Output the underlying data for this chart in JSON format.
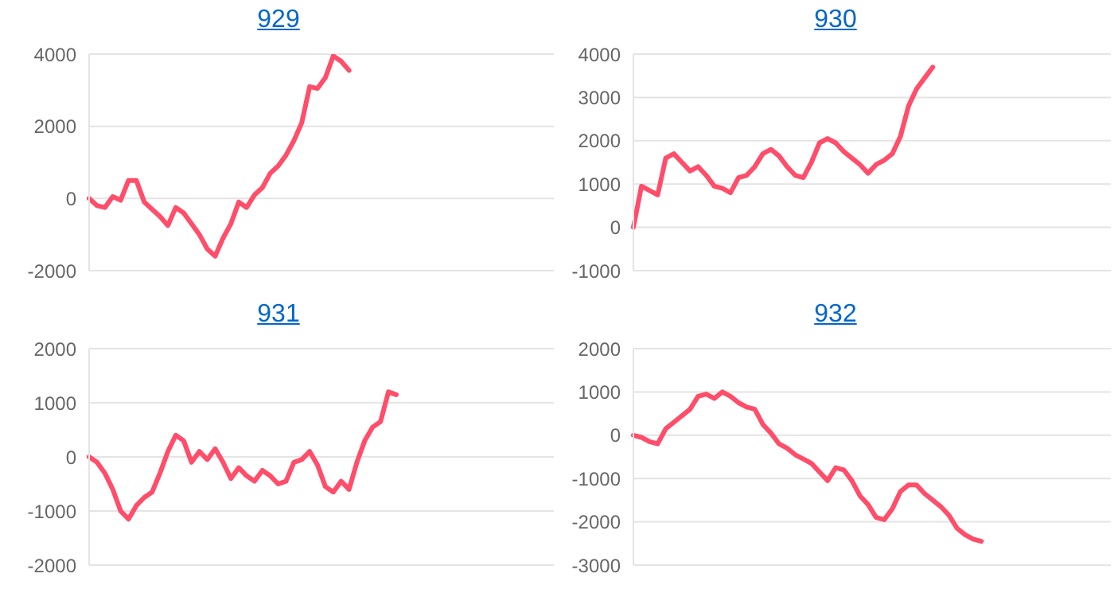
{
  "chart_data": [
    {
      "type": "line",
      "title": "929",
      "categories": [
        null,
        null,
        null,
        null,
        null,
        null,
        null,
        null,
        null,
        null,
        null,
        null,
        null,
        null,
        null,
        null,
        null,
        null,
        null,
        null,
        null,
        null,
        null,
        null,
        null,
        null,
        null,
        null,
        null,
        null,
        null,
        null,
        null,
        null,
        null,
        null,
        null,
        null,
        null,
        null,
        null,
        null,
        null,
        null,
        null,
        null,
        null,
        null,
        null,
        null,
        null,
        null,
        null,
        null,
        null,
        null,
        null,
        null,
        null,
        null
      ],
      "series": [
        {
          "color": "#ff4d6a",
          "values": [
            0,
            -200,
            -250,
            50,
            -50,
            500,
            500,
            -100,
            -300,
            -500,
            -750,
            -250,
            -400,
            -700,
            -1000,
            -1400,
            -1600,
            -1100,
            -700,
            -100,
            -250,
            100,
            300,
            700,
            900,
            1200,
            1600,
            2100,
            3100,
            3050,
            3350,
            3950,
            3800,
            3550,
            null,
            null,
            null,
            null,
            null,
            null,
            null,
            null,
            null,
            null,
            null,
            null,
            null,
            null,
            null,
            null,
            null,
            null,
            null,
            null,
            null,
            null,
            null,
            null,
            null,
            null
          ]
        }
      ],
      "ylim": [
        -2000,
        4000
      ],
      "yticks": [
        -2000,
        0,
        2000,
        4000
      ],
      "grid": "y",
      "marker": "none",
      "line_style": "solid"
    },
    {
      "type": "line",
      "title": "930",
      "categories": [
        null,
        null,
        null,
        null,
        null,
        null,
        null,
        null,
        null,
        null,
        null,
        null,
        null,
        null,
        null,
        null,
        null,
        null,
        null,
        null,
        null,
        null,
        null,
        null,
        null,
        null,
        null,
        null,
        null,
        null,
        null,
        null,
        null,
        null,
        null,
        null,
        null,
        null,
        null,
        null,
        null,
        null,
        null,
        null,
        null,
        null,
        null,
        null,
        null,
        null,
        null,
        null,
        null,
        null,
        null,
        null,
        null,
        null,
        null,
        null
      ],
      "series": [
        {
          "color": "#ff4d6a",
          "values": [
            0,
            950,
            850,
            750,
            1600,
            1700,
            1500,
            1300,
            1400,
            1200,
            950,
            900,
            800,
            1150,
            1200,
            1400,
            1700,
            1800,
            1650,
            1400,
            1200,
            1150,
            1500,
            1950,
            2050,
            1950,
            1750,
            1600,
            1450,
            1250,
            1450,
            1550,
            1700,
            2100,
            2800,
            3200,
            3450,
            3700,
            null,
            null,
            null,
            null,
            null,
            null,
            null,
            null,
            null,
            null,
            null,
            null,
            null,
            null,
            null,
            null,
            null,
            null,
            null,
            null,
            null,
            null
          ]
        }
      ],
      "ylim": [
        -1000,
        4000
      ],
      "yticks": [
        -1000,
        0,
        1000,
        2000,
        3000,
        4000
      ],
      "grid": "y",
      "marker": "none",
      "line_style": "solid"
    },
    {
      "type": "line",
      "title": "931",
      "categories": [
        null,
        null,
        null,
        null,
        null,
        null,
        null,
        null,
        null,
        null,
        null,
        null,
        null,
        null,
        null,
        null,
        null,
        null,
        null,
        null,
        null,
        null,
        null,
        null,
        null,
        null,
        null,
        null,
        null,
        null,
        null,
        null,
        null,
        null,
        null,
        null,
        null,
        null,
        null,
        null,
        null,
        null,
        null,
        null,
        null,
        null,
        null,
        null,
        null,
        null,
        null,
        null,
        null,
        null,
        null,
        null,
        null,
        null,
        null,
        null
      ],
      "series": [
        {
          "color": "#ff4d6a",
          "values": [
            0,
            -100,
            -300,
            -600,
            -1000,
            -1150,
            -900,
            -750,
            -650,
            -300,
            100,
            400,
            300,
            -100,
            100,
            -50,
            150,
            -100,
            -400,
            -200,
            -350,
            -450,
            -250,
            -350,
            -500,
            -450,
            -100,
            -50,
            100,
            -150,
            -550,
            -650,
            -450,
            -600,
            -100,
            300,
            550,
            650,
            1200,
            1150,
            null,
            null,
            null,
            null,
            null,
            null,
            null,
            null,
            null,
            null,
            null,
            null,
            null,
            null,
            null,
            null,
            null,
            null,
            null,
            null
          ]
        }
      ],
      "ylim": [
        -2000,
        2000
      ],
      "yticks": [
        -2000,
        -1000,
        0,
        1000,
        2000
      ],
      "grid": "y",
      "marker": "none",
      "line_style": "solid"
    },
    {
      "type": "line",
      "title": "932",
      "categories": [
        null,
        null,
        null,
        null,
        null,
        null,
        null,
        null,
        null,
        null,
        null,
        null,
        null,
        null,
        null,
        null,
        null,
        null,
        null,
        null,
        null,
        null,
        null,
        null,
        null,
        null,
        null,
        null,
        null,
        null,
        null,
        null,
        null,
        null,
        null,
        null,
        null,
        null,
        null,
        null,
        null,
        null,
        null,
        null,
        null,
        null,
        null,
        null,
        null,
        null,
        null,
        null,
        null,
        null,
        null,
        null,
        null,
        null,
        null,
        null
      ],
      "series": [
        {
          "color": "#ff4d6a",
          "values": [
            0,
            -50,
            -150,
            -200,
            150,
            300,
            450,
            600,
            900,
            950,
            850,
            1000,
            900,
            750,
            650,
            600,
            250,
            50,
            -200,
            -300,
            -450,
            -550,
            -650,
            -850,
            -1050,
            -750,
            -800,
            -1050,
            -1400,
            -1600,
            -1900,
            -1950,
            -1700,
            -1300,
            -1150,
            -1150,
            -1350,
            -1500,
            -1650,
            -1850,
            -2150,
            -2300,
            -2400,
            -2450,
            null,
            null,
            null,
            null,
            null,
            null,
            null,
            null,
            null,
            null,
            null,
            null,
            null,
            null,
            null,
            null
          ]
        }
      ],
      "ylim": [
        -3000,
        2000
      ],
      "yticks": [
        -3000,
        -2000,
        -1000,
        0,
        1000,
        2000
      ],
      "grid": "y",
      "marker": "none",
      "line_style": "solid"
    }
  ]
}
